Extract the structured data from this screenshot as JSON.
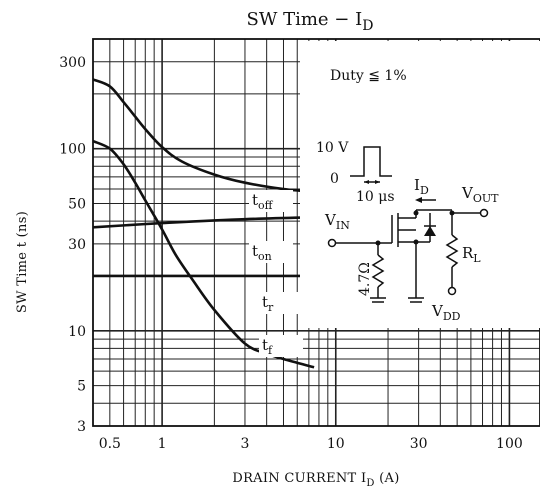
{
  "chart_data": {
    "type": "line",
    "title": "SW Time − I",
    "title_sub": "D",
    "xlabel": "DRAIN CURRENT  I",
    "xlabel_sub": "D",
    "xlabel_unit": "(A)",
    "ylabel": "SW Time   t   (ns)",
    "xscale": "log",
    "yscale": "log",
    "xlim": [
      0.4,
      150
    ],
    "ylim": [
      3,
      400
    ],
    "grid": true,
    "x_ticks": [
      {
        "value": 0.5,
        "label": "0.5"
      },
      {
        "value": 1,
        "label": "1"
      },
      {
        "value": 3,
        "label": "3"
      },
      {
        "value": 10,
        "label": "10"
      },
      {
        "value": 30,
        "label": "30"
      },
      {
        "value": 100,
        "label": "100"
      }
    ],
    "y_ticks": [
      {
        "value": 3,
        "label": "3"
      },
      {
        "value": 5,
        "label": "5"
      },
      {
        "value": 10,
        "label": "10"
      },
      {
        "value": 30,
        "label": "30"
      },
      {
        "value": 50,
        "label": "50"
      },
      {
        "value": 100,
        "label": "100"
      },
      {
        "value": 300,
        "label": "300"
      }
    ],
    "series": [
      {
        "name": "t",
        "sub": "off",
        "x": [
          0.4,
          0.5,
          0.6,
          0.7,
          0.8,
          1.0,
          1.3,
          2.0,
          3.0,
          5.0,
          7.5
        ],
        "y": [
          240,
          220,
          180,
          150,
          128,
          102,
          85,
          72,
          65,
          60,
          58
        ]
      },
      {
        "name": "t",
        "sub": "on",
        "x": [
          0.4,
          1.0,
          3.0,
          7.5
        ],
        "y": [
          37,
          39,
          41,
          42
        ]
      },
      {
        "name": "t",
        "sub": "r",
        "x": [
          0.4,
          7.5
        ],
        "y": [
          20,
          20
        ]
      },
      {
        "name": "t",
        "sub": "f",
        "x": [
          0.4,
          0.5,
          0.6,
          0.7,
          0.8,
          1.0,
          1.2,
          1.5,
          2.0,
          3.0,
          4.0,
          5.0,
          7.5
        ],
        "y": [
          110,
          100,
          82,
          65,
          52,
          36,
          26,
          19,
          13,
          8.5,
          7.5,
          7,
          6.3
        ]
      }
    ],
    "inset": {
      "duty": "Duty ≦ 1%",
      "pulse_high": "10 V",
      "pulse_low": "0",
      "pulse_width": "10 μs",
      "vin": "V",
      "vin_sub": "IN",
      "vout": "V",
      "vout_sub": "OUT",
      "id": "I",
      "id_sub": "D",
      "rl": "R",
      "rl_sub": "L",
      "vdd": "V",
      "vdd_sub": "DD",
      "rg": "4.7Ω"
    }
  }
}
